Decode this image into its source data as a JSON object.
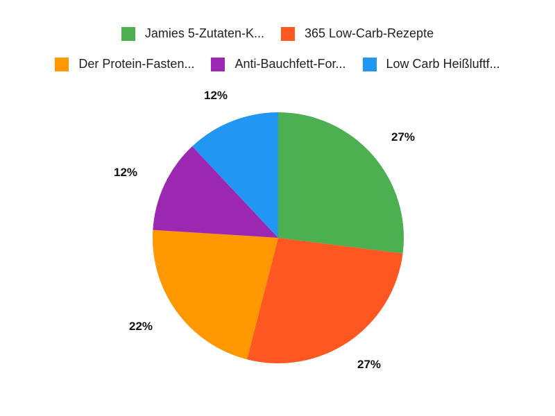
{
  "chart_data": {
    "type": "pie",
    "title": "",
    "legend_position": "top",
    "categories": [
      "Jamies 5-Zutaten-K...",
      "365 Low-Carb-Rezepte",
      "Der Protein-Fasten...",
      "Anti-Bauchfett-For...",
      "Low Carb Heißluftf..."
    ],
    "values": [
      27,
      27,
      22,
      12,
      12
    ],
    "labels": [
      "27%",
      "27%",
      "22%",
      "12%",
      "12%"
    ],
    "colors": [
      "#4CAF50",
      "#FF5722",
      "#FF9800",
      "#9C27B0",
      "#2196F3"
    ],
    "start_angle_deg": 0,
    "direction": "clockwise"
  },
  "legend": {
    "row1": [
      {
        "label": "Jamies 5-Zutaten-K...",
        "color": "#4CAF50"
      },
      {
        "label": "365 Low-Carb-Rezepte",
        "color": "#FF5722"
      }
    ],
    "row2": [
      {
        "label": "Der Protein-Fasten...",
        "color": "#FF9800"
      },
      {
        "label": "Anti-Bauchfett-For...",
        "color": "#9C27B0"
      },
      {
        "label": "Low Carb Heißluftf...",
        "color": "#2196F3"
      }
    ]
  },
  "slice_labels": [
    "27%",
    "27%",
    "22%",
    "12%",
    "12%"
  ]
}
